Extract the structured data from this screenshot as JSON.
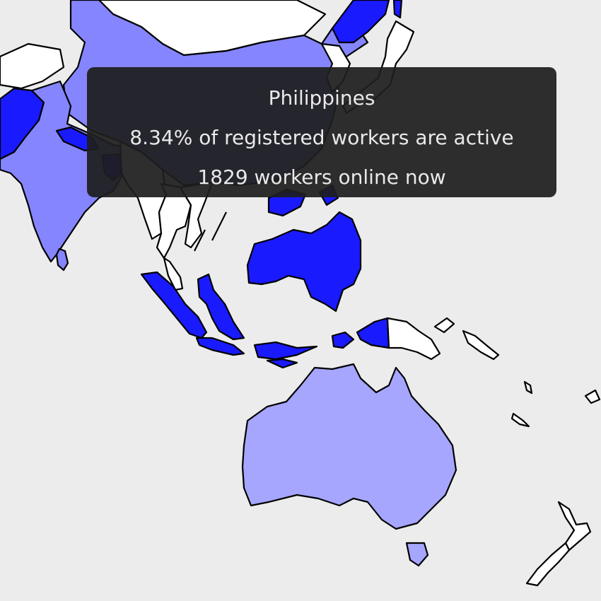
{
  "colors": {
    "background": "#ececec",
    "high": "#1a1aff",
    "medium": "#8585ff",
    "low": "#a6a6ff",
    "none": "#ffffff",
    "border": "#000000"
  },
  "tooltip": {
    "country": "Philippines",
    "active_line": "8.34% of registered workers are active",
    "online_line": "1829 workers online now"
  },
  "regions": [
    {
      "name": "china",
      "fill": "medium"
    },
    {
      "name": "mongolia",
      "fill": "none"
    },
    {
      "name": "india",
      "fill": "medium"
    },
    {
      "name": "pakistan",
      "fill": "high"
    },
    {
      "name": "afghanistan",
      "fill": "none"
    },
    {
      "name": "nepal",
      "fill": "high"
    },
    {
      "name": "bangladesh",
      "fill": "high"
    },
    {
      "name": "myanmar",
      "fill": "none"
    },
    {
      "name": "thailand",
      "fill": "none"
    },
    {
      "name": "vietnam",
      "fill": "none"
    },
    {
      "name": "malaysia",
      "fill": "none"
    },
    {
      "name": "sri-lanka",
      "fill": "medium"
    },
    {
      "name": "philippines",
      "fill": "high"
    },
    {
      "name": "borneo",
      "fill": "high"
    },
    {
      "name": "sumatra",
      "fill": "high"
    },
    {
      "name": "java",
      "fill": "high"
    },
    {
      "name": "sulawesi",
      "fill": "high"
    },
    {
      "name": "papua-west",
      "fill": "high"
    },
    {
      "name": "papua-new-guinea",
      "fill": "none"
    },
    {
      "name": "australia",
      "fill": "low"
    },
    {
      "name": "tasmania",
      "fill": "low"
    },
    {
      "name": "new-zealand",
      "fill": "none"
    },
    {
      "name": "japan",
      "fill": "none"
    },
    {
      "name": "korea",
      "fill": "none"
    },
    {
      "name": "russia-east",
      "fill": "high"
    },
    {
      "name": "solomon-islands",
      "fill": "none"
    }
  ]
}
